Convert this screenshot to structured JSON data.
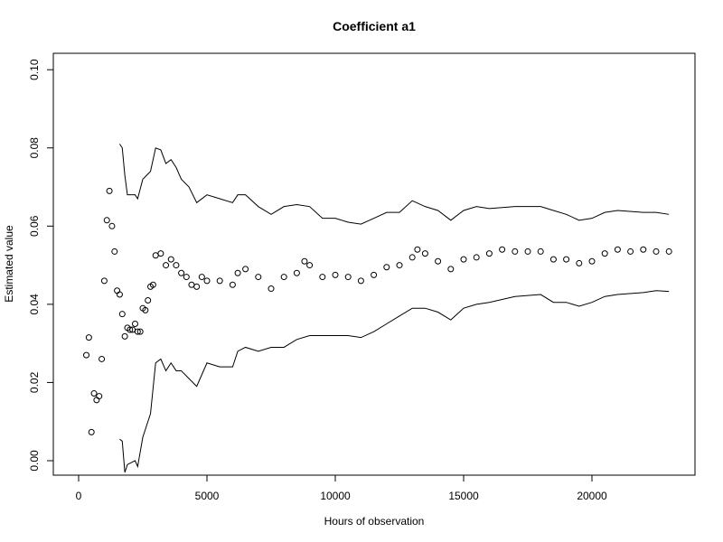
{
  "chart_data": {
    "type": "scatter",
    "title": "Coefficient a1",
    "x_label": "Hours of observation",
    "y_label": "Estimated value",
    "xlim": [
      -986,
      24014
    ],
    "ylim": [
      -0.0037,
      0.1042
    ],
    "xticks": [
      0,
      5000,
      10000,
      15000,
      20000
    ],
    "yticks": [
      {
        "value": 0,
        "label": "0.00"
      },
      0.02,
      0.04,
      0.06,
      0.08,
      {
        "value": 0.1,
        "label": "0.10"
      }
    ],
    "series": [
      {
        "marker": "circle",
        "color": "#000000",
        "x": [
          300,
          400,
          500,
          600,
          700,
          800,
          900,
          1000,
          1100,
          1200,
          1300,
          1400,
          1500,
          1600,
          1700,
          1800,
          1900,
          2000,
          2100,
          2200,
          2300,
          2400,
          2500,
          2600,
          2700,
          2800,
          2900,
          3000,
          3200,
          3400,
          3600,
          3800,
          4000,
          4200,
          4400,
          4600,
          4800,
          5000,
          5500,
          6000,
          6200,
          6500,
          7000,
          7500,
          8000,
          8500,
          8800,
          9000,
          9500,
          10000,
          10500,
          11000,
          11500,
          12000,
          12500,
          13000,
          13200,
          13500,
          14000,
          14500,
          15000,
          15500,
          16000,
          16500,
          17000,
          17500,
          18000,
          18500,
          19000,
          19500,
          20000,
          20500,
          21000,
          21500,
          22000,
          22500,
          23000
        ],
        "values": [
          0.027,
          0.0315,
          0.0073,
          0.0172,
          0.0155,
          0.0165,
          0.026,
          0.046,
          0.0615,
          0.069,
          0.06,
          0.0535,
          0.0435,
          0.0425,
          0.0375,
          0.0318,
          0.034,
          0.0335,
          0.0335,
          0.035,
          0.033,
          0.033,
          0.039,
          0.0385,
          0.041,
          0.0445,
          0.045,
          0.0525,
          0.053,
          0.05,
          0.0515,
          0.05,
          0.048,
          0.047,
          0.045,
          0.0445,
          0.047,
          0.046,
          0.046,
          0.045,
          0.048,
          0.049,
          0.047,
          0.044,
          0.047,
          0.048,
          0.051,
          0.05,
          0.047,
          0.0475,
          0.047,
          0.046,
          0.0475,
          0.0495,
          0.05,
          0.052,
          0.054,
          0.053,
          0.051,
          0.049,
          0.0515,
          0.052,
          0.053,
          0.054,
          0.0535,
          0.0535,
          0.0535,
          0.0515,
          0.0515,
          0.0505,
          0.051,
          0.053,
          0.054,
          0.0535,
          0.054,
          0.0535,
          0.0535
        ]
      },
      {
        "marker": "line",
        "color": "#000000",
        "x": [
          1600,
          1700,
          1800,
          1900,
          2200,
          2300,
          2500,
          2800,
          3000,
          3200,
          3400,
          3600,
          3800,
          4000,
          4300,
          4600,
          5000,
          5500,
          6000,
          6200,
          6500,
          7000,
          7500,
          8000,
          8500,
          9000,
          9500,
          10000,
          10500,
          11000,
          11500,
          12000,
          12500,
          13000,
          13500,
          14000,
          14500,
          15000,
          15500,
          16000,
          17000,
          18000,
          18500,
          19000,
          19500,
          20000,
          20500,
          21000,
          22000,
          22500,
          23000
        ],
        "values": [
          0.081,
          0.08,
          0.073,
          0.068,
          0.068,
          0.067,
          0.072,
          0.074,
          0.08,
          0.0795,
          0.076,
          0.077,
          0.075,
          0.072,
          0.07,
          0.066,
          0.068,
          0.067,
          0.066,
          0.068,
          0.068,
          0.065,
          0.063,
          0.065,
          0.0655,
          0.065,
          0.062,
          0.062,
          0.061,
          0.0605,
          0.062,
          0.0635,
          0.0635,
          0.0665,
          0.065,
          0.064,
          0.0615,
          0.064,
          0.065,
          0.0645,
          0.065,
          0.065,
          0.064,
          0.063,
          0.0615,
          0.062,
          0.0635,
          0.064,
          0.0635,
          0.0635,
          0.063
        ]
      },
      {
        "marker": "line",
        "color": "#000000",
        "x": [
          1600,
          1700,
          1800,
          1900,
          2200,
          2300,
          2500,
          2800,
          3000,
          3200,
          3400,
          3600,
          3800,
          4000,
          4300,
          4600,
          5000,
          5500,
          6000,
          6200,
          6500,
          7000,
          7500,
          8000,
          8500,
          9000,
          9500,
          10000,
          10500,
          11000,
          11500,
          12000,
          12500,
          13000,
          13500,
          14000,
          14500,
          15000,
          15500,
          16000,
          17000,
          18000,
          18500,
          19000,
          19500,
          20000,
          20500,
          21000,
          22000,
          22500,
          23000
        ],
        "values": [
          0.0055,
          0.005,
          -0.003,
          -0.001,
          0.0,
          -0.0015,
          0.006,
          0.012,
          0.025,
          0.026,
          0.023,
          0.025,
          0.023,
          0.023,
          0.021,
          0.019,
          0.025,
          0.024,
          0.024,
          0.028,
          0.029,
          0.028,
          0.029,
          0.029,
          0.031,
          0.032,
          0.032,
          0.032,
          0.032,
          0.0315,
          0.033,
          0.035,
          0.037,
          0.039,
          0.039,
          0.038,
          0.036,
          0.039,
          0.04,
          0.0405,
          0.042,
          0.0425,
          0.0405,
          0.0405,
          0.0395,
          0.0405,
          0.042,
          0.0425,
          0.043,
          0.0435,
          0.0433
        ]
      }
    ]
  }
}
